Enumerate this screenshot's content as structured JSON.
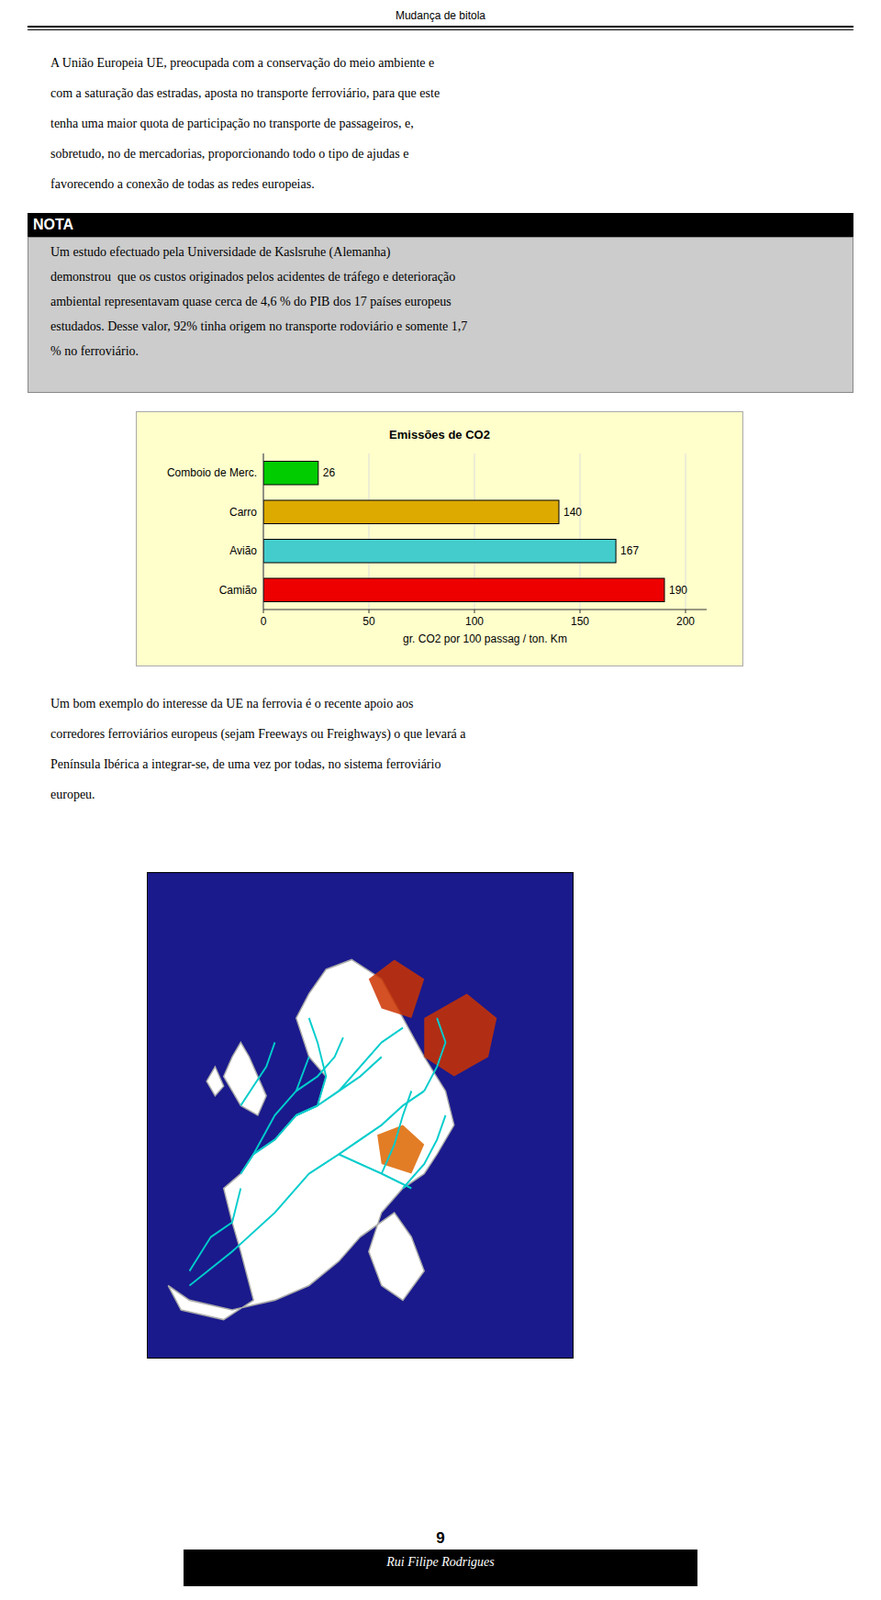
{
  "page_title": "Mudança de bitola",
  "para1_lines": [
    "A União Europeia UE, preocupada com a conservação do meio ambiente e",
    "com a saturação das estradas, aposta no transporte ferroviário, para que este",
    "tenha uma maior quota de participação no transporte de passageiros, e,",
    "sobretudo, no de mercadorias, proporcionando todo o tipo de ajudas e",
    "favorecendo a conexão de todas as redes europeias."
  ],
  "nota_header": "NOTA",
  "nota_lines": [
    "Um estudo efectuado pela Universidade de Kaslsruhe (Alemanha)",
    "demonstrou  que os custos originados pelos acidentes de tráfego e deterioração",
    "ambiental representavam quase cerca de 4,6 % do PIB dos 17 países europeus",
    "estudados. Desse valor, 92% tinha origem no transporte rodoviário e somente 1,7",
    "% no ferroviário."
  ],
  "para2_lines": [
    "Um bom exemplo do interesse da UE na ferrovia é o recente apoio aos",
    "corredores ferroviários europeus (sejam Freeways ou Freighways) o que levará a",
    "Península Ibérica a integrar-se, de uma vez por todas, no sistema ferroviário",
    "europeu."
  ],
  "footer_page": "9",
  "footer_name": "Rui Filipe Rodrigues",
  "chart_data": {
    "type": "bar",
    "orientation": "horizontal",
    "title": "Emissões de CO2",
    "xlabel": "gr. CO2 por 100 passag / ton. Km",
    "categories": [
      "Comboio de Merc.",
      "Carro",
      "Avião",
      "Camião"
    ],
    "values": [
      26,
      140,
      167,
      190
    ],
    "colors": [
      "#00cc00",
      "#ddaa00",
      "#44cccc",
      "#ee0000"
    ],
    "xlim": [
      0,
      210
    ],
    "xticks": [
      0,
      50,
      100,
      150,
      200
    ],
    "grid": true,
    "data_labels": true
  }
}
